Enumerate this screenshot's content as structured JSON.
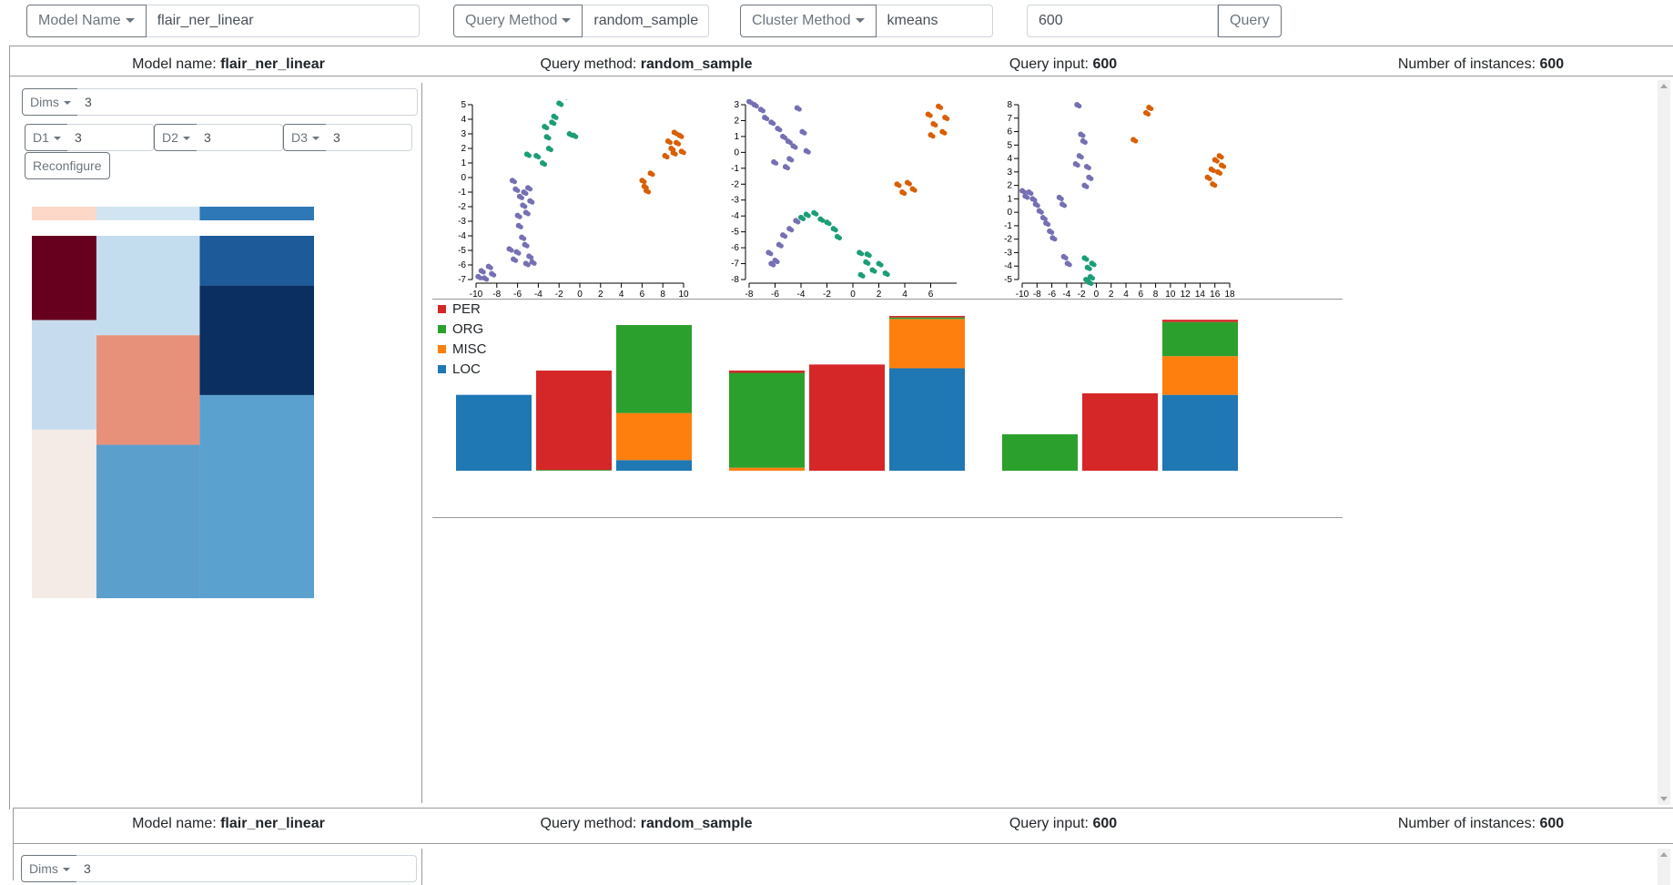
{
  "toolbar": {
    "model_name_label": "Model Name",
    "model_name_value": "flair_ner_linear",
    "query_method_label": "Query Method",
    "query_method_value": "random_sample",
    "cluster_method_label": "Cluster Method",
    "cluster_method_value": "kmeans",
    "query_value": "600",
    "query_button": "Query"
  },
  "panels": [
    {
      "model_name_prefix": "Model name: ",
      "model_name": "flair_ner_linear",
      "query_method_prefix": "Query method: ",
      "query_method": "random_sample",
      "query_input_prefix": "Query input: ",
      "query_input": "600",
      "instances_prefix": "Number of instances: ",
      "instances": "600",
      "dims_label": "Dims",
      "dims_value": "3",
      "d1_label": "D1",
      "d1_value": "3",
      "d2_label": "D2",
      "d2_value": "3",
      "d3_label": "D3",
      "d3_value": "3",
      "reconfigure_label": "Reconfigure"
    },
    {
      "model_name_prefix": "Model name: ",
      "model_name": "flair_ner_linear",
      "query_method_prefix": "Query method: ",
      "query_method": "random_sample",
      "query_input_prefix": "Query input: ",
      "query_input": "600",
      "instances_prefix": "Number of instances: ",
      "instances": "600",
      "dims_label": "Dims",
      "dims_value": "3"
    }
  ],
  "legend": [
    {
      "name": "PER",
      "color": "#d62728"
    },
    {
      "name": "ORG",
      "color": "#2ca02c"
    },
    {
      "name": "MISC",
      "color": "#ff7f0e"
    },
    {
      "name": "LOC",
      "color": "#1f77b4"
    }
  ],
  "chart_data": [
    {
      "type": "scatter",
      "xticks": [
        "-10",
        "-8",
        "-6",
        "-4",
        "-2",
        "0",
        "2",
        "4",
        "6",
        "8",
        "10"
      ],
      "yticks": [
        "5",
        "4",
        "3",
        "2",
        "1",
        "0",
        "-1",
        "-2",
        "-3",
        "-4",
        "-5",
        "-6",
        "-7"
      ],
      "xlim": [
        -10,
        10
      ],
      "ylim": [
        -7,
        5
      ],
      "series": [
        {
          "color": "#7570b3",
          "points": [
            [
              -9.8,
              -6.8
            ],
            [
              -9.5,
              -6.4
            ],
            [
              -9.2,
              -6.9
            ],
            [
              -8.8,
              -6.1
            ],
            [
              -8.5,
              -6.6
            ],
            [
              -6.5,
              -0.2
            ],
            [
              -6.2,
              -0.8
            ],
            [
              -5.8,
              -1.3
            ],
            [
              -5.5,
              -1.9
            ],
            [
              -5.2,
              -2.4
            ],
            [
              -4.8,
              -1.6
            ],
            [
              -6.0,
              -2.6
            ],
            [
              -5.9,
              -3.3
            ],
            [
              -5.6,
              -4.1
            ],
            [
              -5.3,
              -4.6
            ],
            [
              -6.1,
              -5.1
            ],
            [
              -4.9,
              -5.4
            ],
            [
              -5.2,
              -5.9
            ],
            [
              -6.4,
              -5.6
            ],
            [
              -4.6,
              -5.8
            ],
            [
              -6.8,
              -4.9
            ],
            [
              -5.0,
              -0.7
            ],
            [
              -5.4,
              -1.0
            ]
          ]
        },
        {
          "color": "#1b9e77",
          "points": [
            [
              -3.0,
              2.0
            ],
            [
              -3.2,
              2.8
            ],
            [
              -3.4,
              3.5
            ],
            [
              -2.5,
              4.2
            ],
            [
              -2.0,
              5.1
            ],
            [
              -1.5,
              5.6
            ],
            [
              -1.0,
              3.0
            ],
            [
              -0.6,
              2.9
            ],
            [
              -4.2,
              1.5
            ],
            [
              -5.1,
              1.6
            ],
            [
              -3.6,
              1.0
            ],
            [
              -2.7,
              3.8
            ]
          ]
        },
        {
          "color": "#d95f02",
          "points": [
            [
              6.0,
              -0.2
            ],
            [
              6.2,
              -0.6
            ],
            [
              6.4,
              -0.9
            ],
            [
              6.8,
              0.3
            ],
            [
              8.5,
              2.5
            ],
            [
              8.8,
              2.0
            ],
            [
              9.0,
              1.7
            ],
            [
              9.3,
              2.4
            ],
            [
              9.6,
              2.9
            ],
            [
              8.2,
              1.5
            ],
            [
              9.8,
              1.8
            ],
            [
              9.1,
              3.1
            ]
          ]
        }
      ]
    },
    {
      "type": "scatter",
      "xticks": [
        "-8",
        "-6",
        "-4",
        "-2",
        "0",
        "2",
        "4",
        "6"
      ],
      "yticks": [
        "3",
        "2",
        "1",
        "0",
        "-1",
        "-2",
        "-3",
        "-4",
        "-5",
        "-6",
        "-7",
        "-8"
      ],
      "xlim": [
        -8,
        8
      ],
      "ylim": [
        -8,
        3
      ],
      "series": [
        {
          "color": "#7570b3",
          "points": [
            [
              -8.0,
              3.2
            ],
            [
              -7.6,
              3.0
            ],
            [
              -7.1,
              2.7
            ],
            [
              -6.8,
              2.2
            ],
            [
              -6.3,
              1.9
            ],
            [
              -5.8,
              1.5
            ],
            [
              -5.4,
              1.0
            ],
            [
              -5.0,
              0.7
            ],
            [
              -4.6,
              0.4
            ],
            [
              -4.9,
              -0.4
            ],
            [
              -5.2,
              -0.9
            ],
            [
              -6.1,
              -0.6
            ],
            [
              -4.3,
              2.8
            ],
            [
              -3.9,
              1.3
            ],
            [
              -3.6,
              0.1
            ],
            [
              -6.5,
              -6.3
            ],
            [
              -6.0,
              -6.8
            ],
            [
              -5.7,
              -5.8
            ],
            [
              -5.4,
              -5.2
            ],
            [
              -4.9,
              -4.8
            ],
            [
              -4.4,
              -4.3
            ],
            [
              -6.3,
              -7.0
            ]
          ]
        },
        {
          "color": "#1b9e77",
          "points": [
            [
              -3.0,
              -3.8
            ],
            [
              -2.5,
              -4.2
            ],
            [
              -2.0,
              -4.4
            ],
            [
              -1.5,
              -4.8
            ],
            [
              -1.2,
              -5.3
            ],
            [
              -3.6,
              -3.9
            ],
            [
              -4.0,
              -4.1
            ],
            [
              0.5,
              -6.3
            ],
            [
              1.0,
              -6.9
            ],
            [
              1.5,
              -7.4
            ],
            [
              2.0,
              -7.0
            ],
            [
              2.5,
              -7.6
            ],
            [
              1.1,
              -6.4
            ],
            [
              0.6,
              -7.7
            ]
          ]
        },
        {
          "color": "#d95f02",
          "points": [
            [
              3.4,
              -2.0
            ],
            [
              3.8,
              -2.5
            ],
            [
              4.2,
              -1.9
            ],
            [
              4.6,
              -2.3
            ],
            [
              5.8,
              2.4
            ],
            [
              6.2,
              1.8
            ],
            [
              6.6,
              2.9
            ],
            [
              6.9,
              1.3
            ],
            [
              7.1,
              2.2
            ],
            [
              6.0,
              1.1
            ]
          ]
        }
      ]
    },
    {
      "type": "scatter",
      "xticks": [
        "-10",
        "-8",
        "-6",
        "-4",
        "-2",
        "0",
        "2",
        "4",
        "6",
        "8",
        "10",
        "12",
        "14",
        "16",
        "18"
      ],
      "yticks": [
        "8",
        "7",
        "6",
        "5",
        "4",
        "3",
        "2",
        "1",
        "0",
        "-1",
        "-2",
        "-3",
        "-4",
        "-5"
      ],
      "xlim": [
        -10,
        18
      ],
      "ylim": [
        -5,
        8
      ],
      "series": [
        {
          "color": "#7570b3",
          "points": [
            [
              -10.0,
              1.6
            ],
            [
              -9.6,
              1.2
            ],
            [
              -9.1,
              1.5
            ],
            [
              -8.6,
              1.0
            ],
            [
              -8.2,
              0.6
            ],
            [
              -7.7,
              0.1
            ],
            [
              -7.2,
              -0.4
            ],
            [
              -6.8,
              -0.8
            ],
            [
              -6.3,
              -1.4
            ],
            [
              -5.9,
              -1.9
            ],
            [
              -4.4,
              -3.3
            ],
            [
              -3.9,
              -3.8
            ],
            [
              -5.0,
              1.1
            ],
            [
              -4.6,
              0.6
            ],
            [
              -2.8,
              3.6
            ],
            [
              -2.3,
              4.2
            ],
            [
              -1.8,
              5.3
            ],
            [
              -1.3,
              3.4
            ],
            [
              -1.0,
              2.6
            ],
            [
              -1.6,
              2.0
            ],
            [
              -2.6,
              8.0
            ],
            [
              -2.1,
              5.8
            ]
          ]
        },
        {
          "color": "#1b9e77",
          "points": [
            [
              -1.6,
              -3.4
            ],
            [
              -1.2,
              -4.1
            ],
            [
              -0.8,
              -4.8
            ],
            [
              -1.4,
              -5.0
            ],
            [
              -0.6,
              -3.8
            ],
            [
              -1.0,
              -5.2
            ]
          ]
        },
        {
          "color": "#d95f02",
          "points": [
            [
              5.0,
              5.4
            ],
            [
              6.7,
              7.4
            ],
            [
              7.1,
              7.8
            ],
            [
              15.0,
              2.6
            ],
            [
              15.5,
              3.2
            ],
            [
              16.0,
              3.9
            ],
            [
              16.4,
              3.0
            ],
            [
              16.9,
              3.5
            ],
            [
              15.7,
              2.1
            ],
            [
              16.6,
              4.2
            ]
          ]
        }
      ]
    },
    {
      "type": "bar",
      "stacked": true,
      "series_order": [
        "LOC",
        "MISC",
        "ORG",
        "PER"
      ],
      "groups": [
        {
          "bars": [
            {
              "LOC": 100,
              "MISC": 0,
              "ORG": 0,
              "PER": 0
            },
            {
              "LOC": 0,
              "MISC": 0,
              "ORG": 1,
              "PER": 131
            },
            {
              "LOC": 14,
              "MISC": 62,
              "ORG": 116,
              "PER": 0
            }
          ]
        },
        {
          "bars": [
            {
              "LOC": 0,
              "MISC": 4,
              "ORG": 125,
              "PER": 3
            },
            {
              "LOC": 0,
              "MISC": 0,
              "ORG": 0,
              "PER": 140
            },
            {
              "LOC": 135,
              "MISC": 65,
              "ORG": 2,
              "PER": 2
            }
          ]
        },
        {
          "bars": [
            {
              "LOC": 0,
              "MISC": 0,
              "ORG": 48,
              "PER": 0
            },
            {
              "LOC": 0,
              "MISC": 0,
              "ORG": 0,
              "PER": 102
            },
            {
              "LOC": 100,
              "MISC": 51,
              "ORG": 45,
              "PER": 3
            }
          ]
        }
      ],
      "ymax": 204
    },
    {
      "type": "heatmap",
      "header_colors": [
        "#fdd8c8",
        "#d1e4f1",
        "#2f78b7"
      ],
      "column_widths": [
        1,
        1.6,
        1.77
      ],
      "columns": [
        {
          "cells": [
            {
              "h": 1.0,
              "color": "#67001f"
            },
            {
              "h": 1.3,
              "color": "#c6dcee"
            },
            {
              "h": 2.0,
              "color": "#f5ebe6"
            }
          ]
        },
        {
          "cells": [
            {
              "h": 1.18,
              "color": "#c3dcee"
            },
            {
              "h": 1.3,
              "color": "#e8917a"
            },
            {
              "h": 1.82,
              "color": "#5b9fcd"
            }
          ]
        },
        {
          "cells": [
            {
              "h": 0.59,
              "color": "#1c5a9a"
            },
            {
              "h": 1.3,
              "color": "#0a2f60"
            },
            {
              "h": 2.41,
              "color": "#5ba1cf"
            }
          ]
        }
      ]
    }
  ]
}
